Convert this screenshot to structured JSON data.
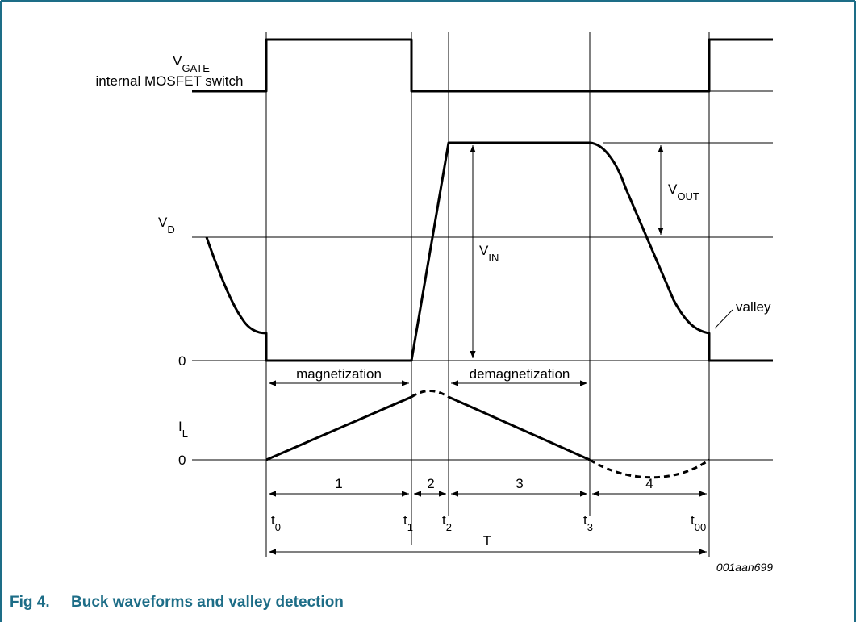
{
  "figure": {
    "labels": {
      "vgate_main": "V",
      "vgate_sub": "GATE",
      "vgate_desc": "internal MOSFET switch",
      "vd_main": "V",
      "vd_sub": "D",
      "zero_vd": "0",
      "vout_main": "V",
      "vout_sub": "OUT",
      "vin_main": "V",
      "vin_sub": "IN",
      "valley": "valley",
      "magnetization": "magnetization",
      "demagnetization": "demagnetization",
      "il_main": "I",
      "il_sub": "L",
      "zero_il": "0",
      "interval_1": "1",
      "interval_2": "2",
      "interval_3": "3",
      "interval_4": "4",
      "t0_main": "t",
      "t0_sub": "0",
      "t1_main": "t",
      "t1_sub": "1",
      "t2_main": "t",
      "t2_sub": "2",
      "t3_main": "t",
      "t3_sub": "3",
      "t00_main": "t",
      "t00_sub": "00",
      "period": "T",
      "figure_id": "001aan699"
    },
    "colors": {
      "frame": "#1d6d87",
      "caption": "#1d6d87",
      "line": "#000000"
    }
  },
  "caption": {
    "number": "Fig 4.",
    "title": "Buck waveforms and valley detection"
  }
}
